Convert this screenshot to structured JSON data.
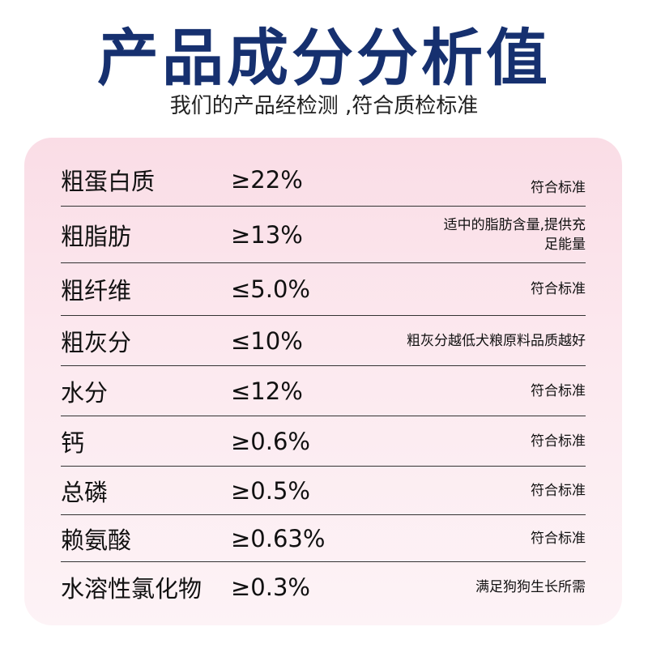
{
  "title": "产品成分分析值",
  "subtitle": "我们的产品经检测 ,符合质检标准",
  "rows": [
    {
      "name": "粗蛋白质",
      "value": "≥22%",
      "note": "符合标准"
    },
    {
      "name": "粗脂肪",
      "value": "≥13%",
      "note": "适中的脂肪含量,提供充足能量"
    },
    {
      "name": "粗纤维",
      "value": "≤5.0%",
      "note": "符合标准"
    },
    {
      "name": "粗灰分",
      "value": "≤10%",
      "note": "粗灰分越低犬粮原料品质越好"
    },
    {
      "name": "水分",
      "value": "≤12%",
      "note": "符合标准"
    },
    {
      "name": "钙",
      "value": "≥0.6%",
      "note": "符合标准"
    },
    {
      "name": "总磷",
      "value": "≥0.5%",
      "note": "符合标准"
    },
    {
      "name": "赖氨酸",
      "value": "≥0.63%",
      "note": "符合标准"
    },
    {
      "name": "水溶性氯化物",
      "value": "≥0.3%",
      "note": "满足狗狗生长所需"
    }
  ],
  "colors": {
    "title": "#16306f",
    "card": "#fadde6"
  }
}
